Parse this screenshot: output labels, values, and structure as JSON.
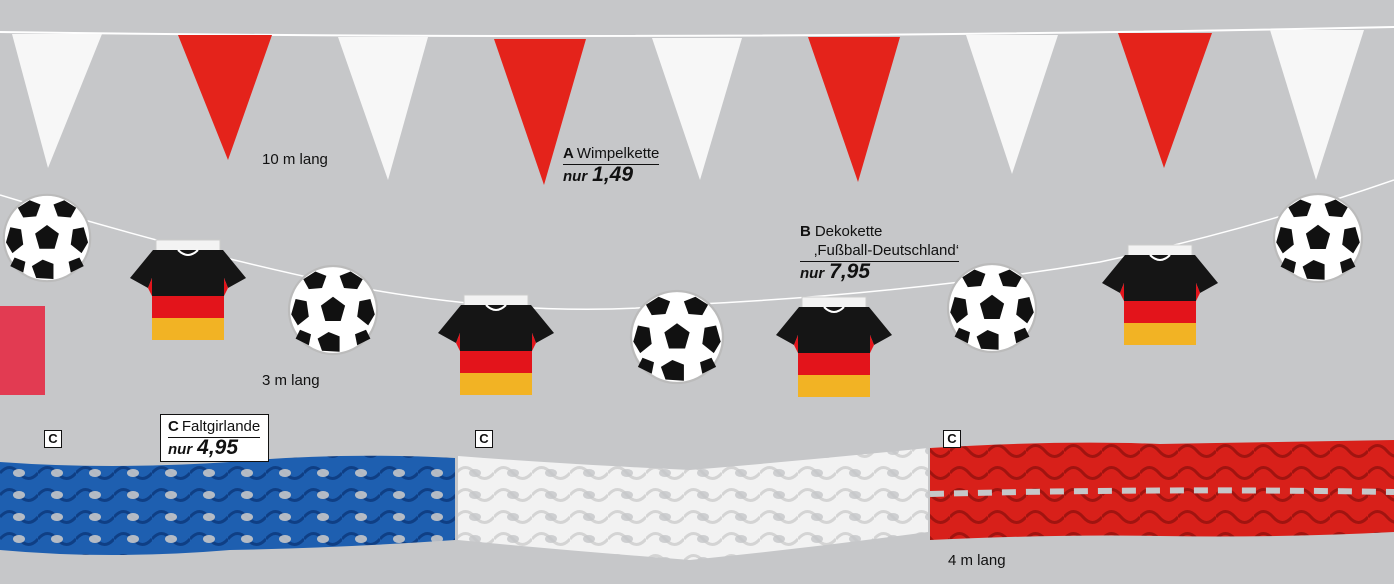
{
  "products": {
    "a": {
      "letter": "A",
      "name": "Wimpelkette",
      "prefix": "nur",
      "price": "1,49",
      "length": "10 m lang"
    },
    "b": {
      "letter": "B",
      "name_line1": "Dekokette",
      "name_line2": "‚Fußball-Deutschland‘",
      "prefix": "nur",
      "price": "7,95",
      "length": "3 m lang"
    },
    "c": {
      "letter": "C",
      "name": "Faltgirlande",
      "prefix": "nur",
      "price": "4,95",
      "length": "4 m lang",
      "tags": [
        "C",
        "C",
        "C"
      ]
    }
  },
  "colors": {
    "background": "#c6c7c9",
    "pennant_red": "#e4231b",
    "pennant_white": "#f7f7f7",
    "garland_blue": "#1e5fb0",
    "garland_white": "#f2f2f2",
    "garland_red": "#d8201a",
    "accent_bar": "#e23b52"
  },
  "icons": {
    "ball": "soccer-ball-icon",
    "shirt": "germany-jersey-icon"
  }
}
